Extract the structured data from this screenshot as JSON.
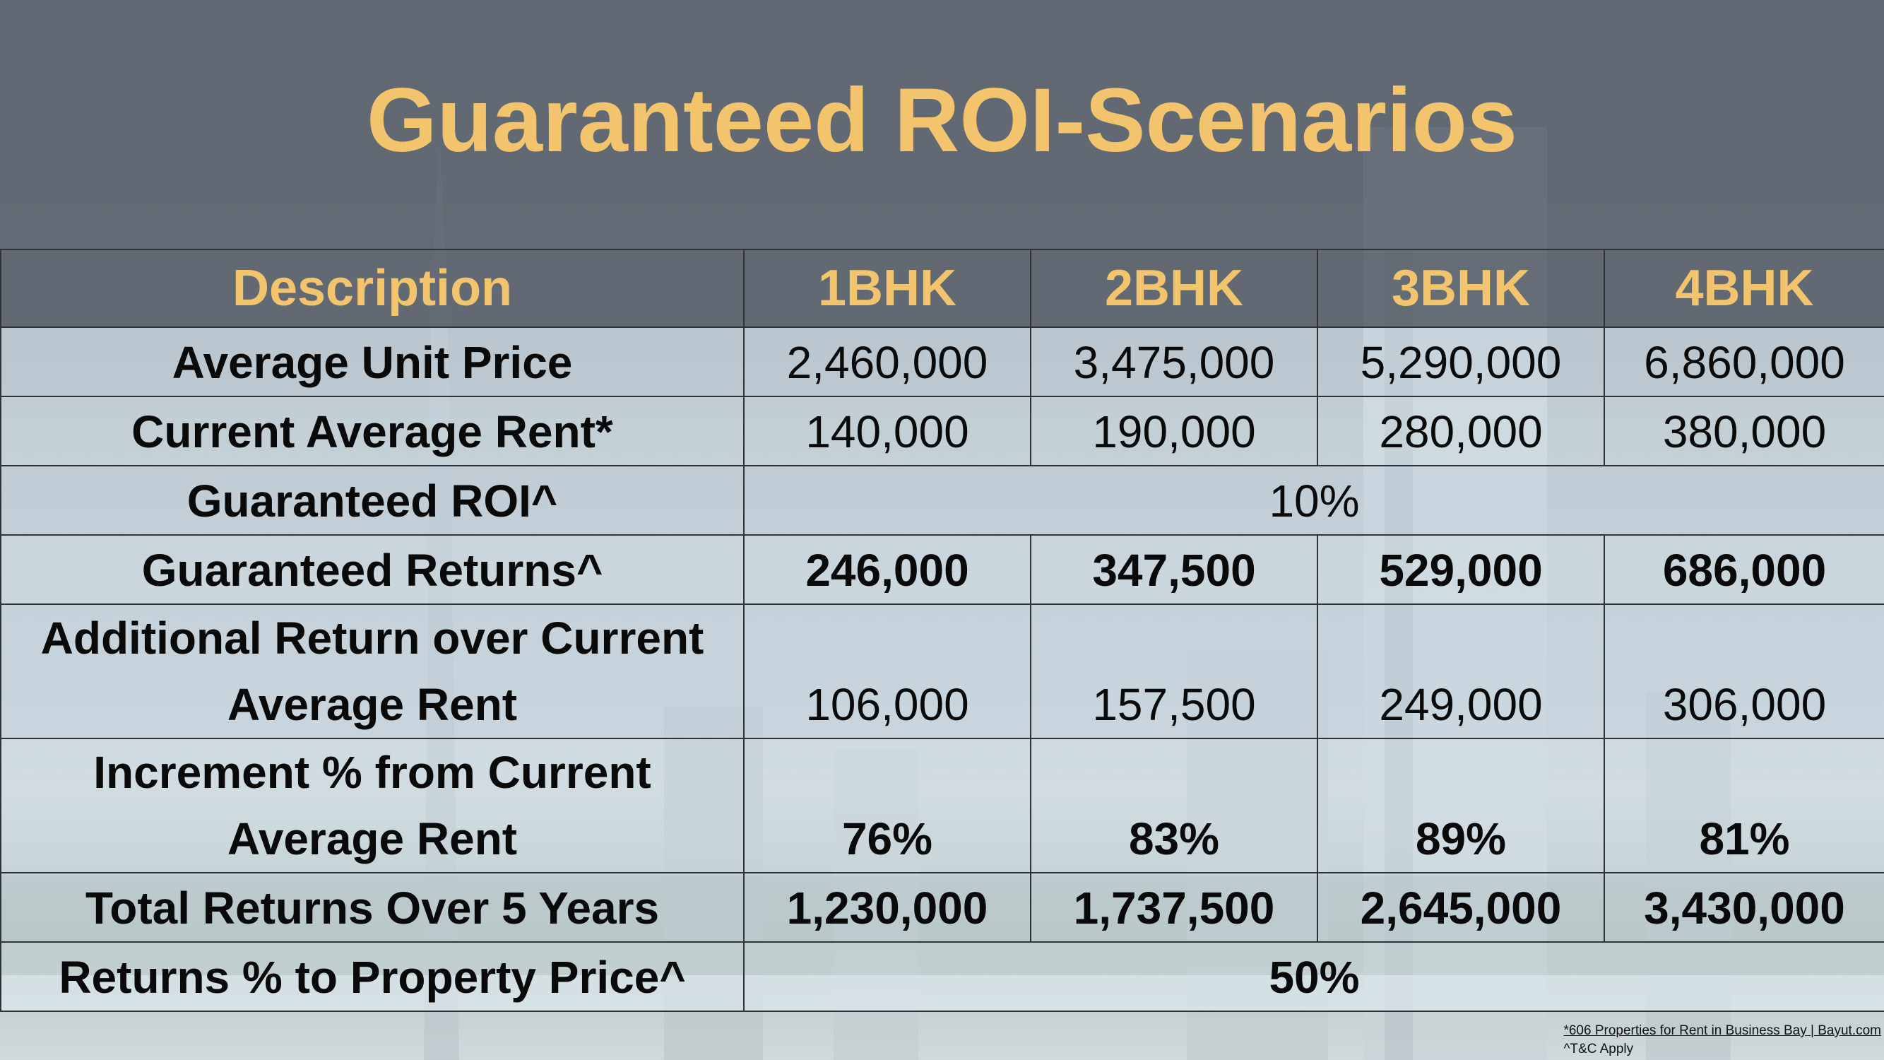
{
  "title": "Guaranteed ROI-Scenarios",
  "colors": {
    "title": "#f2c46d",
    "header_band": "#606670",
    "text": "#0a0a0a"
  },
  "table": {
    "headers": [
      "Description",
      "1BHK",
      "2BHK",
      "3BHK",
      "4BHK"
    ],
    "rows": [
      {
        "label": "Average Unit Price",
        "values": [
          "2,460,000",
          "3,475,000",
          "5,290,000",
          "6,860,000"
        ],
        "bold": false
      },
      {
        "label": "Current Average Rent*",
        "values": [
          "140,000",
          "190,000",
          "280,000",
          "380,000"
        ],
        "bold": false
      },
      {
        "label": "Guaranteed ROI^",
        "merged": "10%",
        "bold": false
      },
      {
        "label": "Guaranteed Returns^",
        "values": [
          "246,000",
          "347,500",
          "529,000",
          "686,000"
        ],
        "bold": true
      },
      {
        "label_lines": [
          "Additional Return over Current",
          "Average Rent"
        ],
        "values": [
          "106,000",
          "157,500",
          "249,000",
          "306,000"
        ],
        "bold": false
      },
      {
        "label_lines": [
          "Increment % from Current",
          "Average Rent"
        ],
        "values": [
          "76%",
          "83%",
          "89%",
          "81%"
        ],
        "bold": true
      },
      {
        "label": "Total Returns Over 5 Years",
        "values": [
          "1,230,000",
          "1,737,500",
          "2,645,000",
          "3,430,000"
        ],
        "bold": true
      },
      {
        "label": "Returns % to Property Price^",
        "merged": "50%",
        "bold": true
      }
    ]
  },
  "footnotes": [
    "*606 Properties for Rent in Business Bay | Bayut.com",
    "^T&C Apply"
  ]
}
